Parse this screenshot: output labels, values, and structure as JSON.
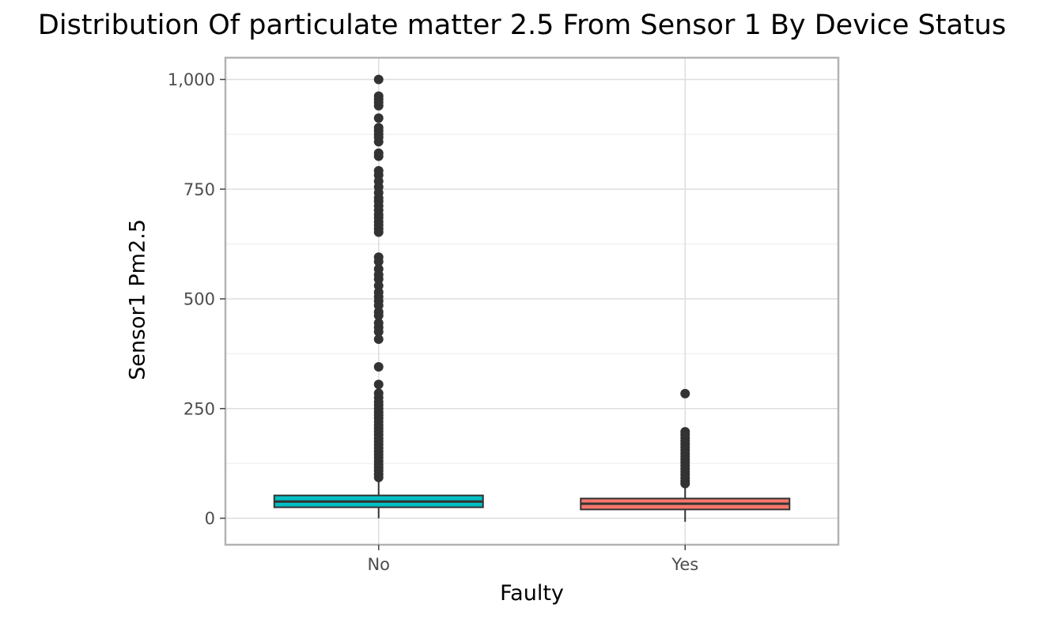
{
  "chart_data": {
    "type": "box",
    "title": "Distribution Of particulate matter 2.5 From Sensor 1 By Device Status",
    "xlabel": "Faulty",
    "ylabel": "Sensor1 Pm2.5",
    "categories": [
      "No",
      "Yes"
    ],
    "ylim": [
      -60,
      1045
    ],
    "yticks": [
      0,
      250,
      500,
      750,
      1000
    ],
    "ytick_labels": [
      "0",
      "250",
      "500",
      "750",
      "1,000"
    ],
    "grid": true,
    "boxes": [
      {
        "category": "No",
        "color": "#00BFC4",
        "lower_whisker": 0,
        "q1": 25,
        "median": 38,
        "q3": 52,
        "upper_whisker": 90,
        "outliers": [
          1000,
          962,
          955,
          948,
          940,
          912,
          890,
          883,
          875,
          868,
          858,
          832,
          825,
          792,
          782,
          768,
          755,
          742,
          730,
          722,
          712,
          702,
          692,
          685,
          676,
          668,
          660,
          652,
          595,
          585,
          568,
          555,
          545,
          530,
          515,
          505,
          495,
          485,
          470,
          462,
          445,
          435,
          425,
          408,
          345,
          305,
          285,
          275,
          265,
          258,
          250,
          242,
          235,
          228,
          220,
          212,
          205,
          198,
          190,
          182,
          175,
          168,
          160,
          152,
          145,
          138,
          130,
          122,
          115,
          108,
          100,
          93
        ]
      },
      {
        "category": "Yes",
        "color": "#F8766D",
        "lower_whisker": -8,
        "q1": 20,
        "median": 33,
        "q3": 45,
        "upper_whisker": 72,
        "outliers": [
          284,
          197,
          190,
          183,
          176,
          169,
          162,
          155,
          148,
          141,
          134,
          127,
          120,
          113,
          106,
          99,
          92,
          85,
          79
        ]
      }
    ]
  }
}
